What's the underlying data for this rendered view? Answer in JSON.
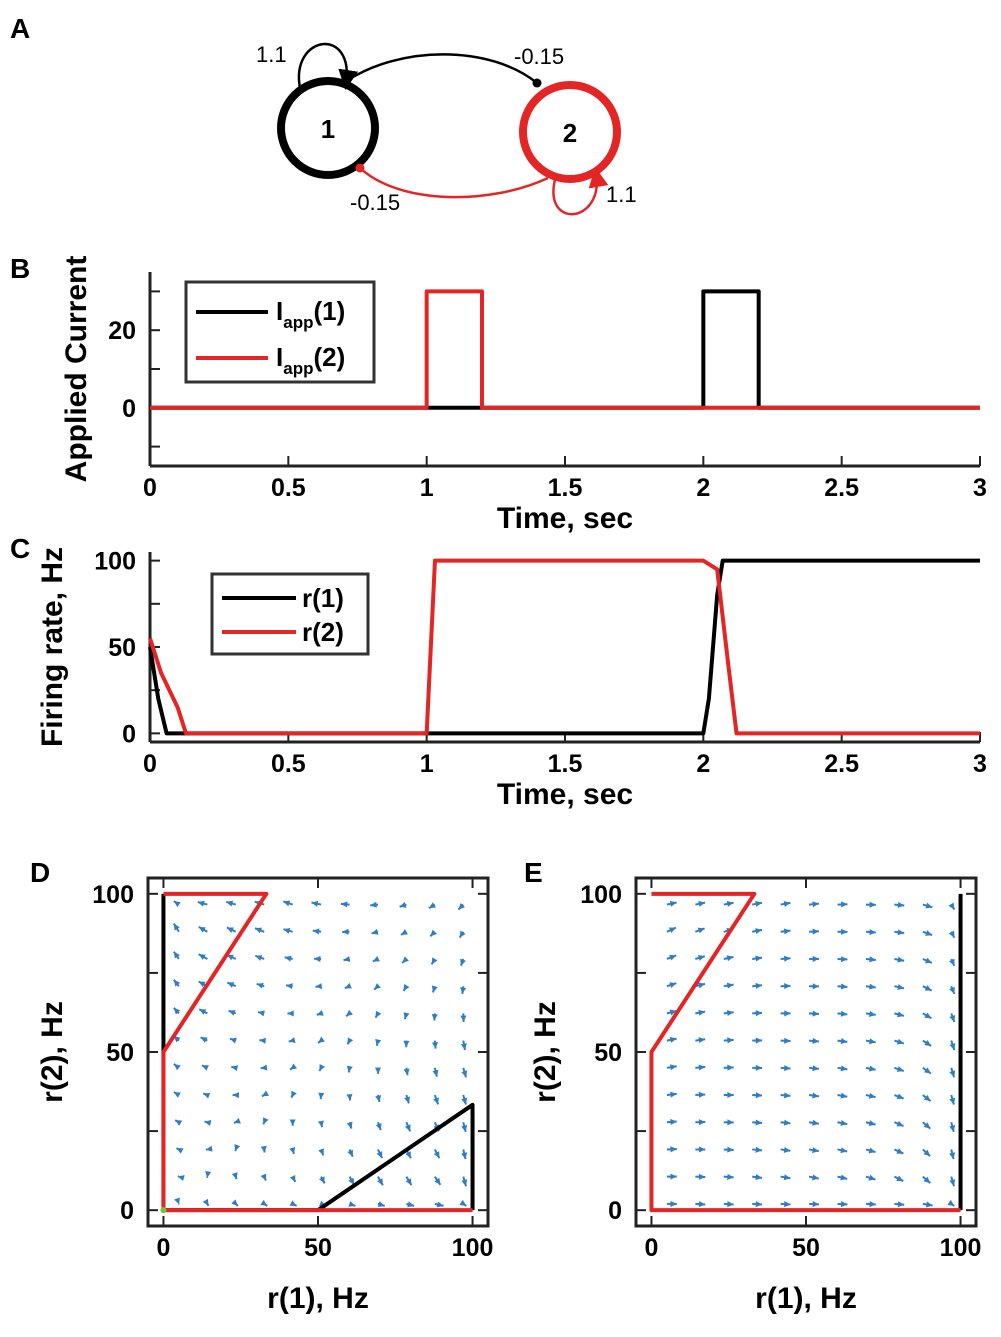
{
  "colors": {
    "neuron1": "#000000",
    "neuron2": "#e32525",
    "quiver": "#2f7ec4",
    "fixed_point": "#66cc33"
  },
  "panels": {
    "A": {
      "letter": "A",
      "node1_label": "1",
      "node2_label": "2",
      "self_weight_1": "1.1",
      "self_weight_2": "1.1",
      "cross_weight_12": "-0.15",
      "cross_weight_21": "-0.15"
    },
    "B": {
      "letter": "B"
    },
    "C": {
      "letter": "C"
    },
    "D": {
      "letter": "D"
    },
    "E": {
      "letter": "E"
    }
  },
  "chart_data": [
    {
      "id": "B",
      "type": "line",
      "xlabel": "Time, sec",
      "ylabel": "Applied Current",
      "xlim": [
        0,
        3
      ],
      "ylim": [
        -15,
        35
      ],
      "xticks": [
        0,
        0.5,
        1,
        1.5,
        2,
        2.5,
        3
      ],
      "xtick_labels": [
        "0",
        "0.5",
        "1",
        "1.5",
        "2",
        "2.5",
        "3"
      ],
      "yticks": [
        0,
        20
      ],
      "ytick_labels": [
        "0",
        "20"
      ],
      "legend": {
        "position": "top-left",
        "entries": [
          {
            "main": "I",
            "sub": "app",
            "suffix": "(1)",
            "color": "#000000"
          },
          {
            "main": "I",
            "sub": "app",
            "suffix": "(2)",
            "color": "#e32525"
          }
        ]
      },
      "series": [
        {
          "name": "Iapp(1)",
          "color": "#000000",
          "x": [
            0,
            2,
            2,
            2.2,
            2.2,
            3
          ],
          "y": [
            0,
            0,
            30,
            30,
            0,
            0
          ]
        },
        {
          "name": "Iapp(2)",
          "color": "#e32525",
          "x": [
            0,
            1,
            1,
            1.2,
            1.2,
            2,
            3
          ],
          "y": [
            0,
            0,
            30,
            30,
            0,
            0,
            0
          ]
        }
      ]
    },
    {
      "id": "C",
      "type": "line",
      "xlabel": "Time, sec",
      "ylabel": "Firing rate, Hz",
      "xlim": [
        0,
        3
      ],
      "ylim": [
        -5,
        105
      ],
      "xticks": [
        0,
        0.5,
        1,
        1.5,
        2,
        2.5,
        3
      ],
      "xtick_labels": [
        "0",
        "0.5",
        "1",
        "1.5",
        "2",
        "2.5",
        "3"
      ],
      "yticks": [
        0,
        50,
        100
      ],
      "ytick_labels": [
        "0",
        "50",
        "100"
      ],
      "legend": {
        "position": "top-left",
        "entries": [
          {
            "main": "r(1)",
            "color": "#000000"
          },
          {
            "main": "r(2)",
            "color": "#e32525"
          }
        ]
      },
      "series": [
        {
          "name": "r(1)",
          "color": "#000000",
          "x": [
            0,
            0.03,
            0.06,
            1,
            2,
            2.02,
            2.05,
            2.07,
            3
          ],
          "y": [
            50,
            20,
            0,
            0,
            0,
            20,
            80,
            100,
            100
          ]
        },
        {
          "name": "r(2)",
          "color": "#e32525",
          "x": [
            0,
            0.04,
            0.1,
            0.13,
            1,
            1.03,
            2,
            2.05,
            2.09,
            2.12,
            3
          ],
          "y": [
            55,
            35,
            15,
            0,
            0,
            100,
            100,
            95,
            40,
            0,
            0
          ]
        }
      ]
    },
    {
      "id": "D",
      "type": "quiver",
      "xlabel": "r(1), Hz",
      "ylabel": "r(2), Hz",
      "xlim": [
        -5,
        105
      ],
      "ylim": [
        -5,
        105
      ],
      "xticks": [
        0,
        50,
        100
      ],
      "xtick_labels": [
        "0",
        "50",
        "100"
      ],
      "yticks": [
        0,
        50,
        100
      ],
      "ytick_labels": [
        "0",
        "50",
        "100"
      ],
      "self_weight": 1.1,
      "cross_weight": -0.15,
      "nullcline_1": {
        "color": "#000000",
        "x": [
          0,
          0,
          0,
          50,
          100,
          100
        ],
        "y": [
          100,
          50,
          0,
          0,
          33.3,
          0
        ]
      },
      "nullcline_2": {
        "color": "#e32525",
        "x": [
          100,
          50,
          0,
          0,
          33.3,
          0
        ],
        "y": [
          0,
          0,
          0,
          50,
          100,
          100
        ]
      },
      "fixed_point": {
        "x": 0,
        "y": 0
      }
    },
    {
      "id": "E",
      "type": "quiver",
      "xlabel": "r(1), Hz",
      "ylabel": "r(2), Hz",
      "xlim": [
        -5,
        105
      ],
      "ylim": [
        -5,
        105
      ],
      "xticks": [
        0,
        50,
        100
      ],
      "xtick_labels": [
        "0",
        "50",
        "100"
      ],
      "yticks": [
        0,
        50,
        100
      ],
      "ytick_labels": [
        "0",
        "50",
        "100"
      ],
      "self_weight": 1.1,
      "cross_weight": -0.15,
      "input_1": 30,
      "nullcline_1": {
        "color": "#000000",
        "x": [
          100,
          100
        ],
        "y": [
          0,
          100
        ]
      },
      "nullcline_2": {
        "color": "#e32525",
        "x": [
          100,
          0,
          0,
          33.3,
          0
        ],
        "y": [
          0,
          0,
          50,
          100,
          100
        ]
      }
    }
  ]
}
